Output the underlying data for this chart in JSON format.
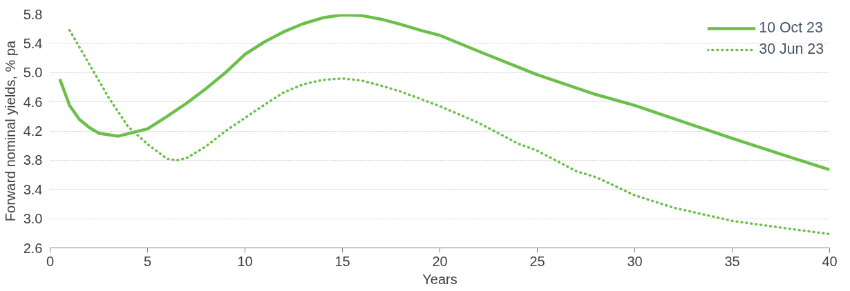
{
  "chart_data": {
    "type": "line",
    "xlabel": "Years",
    "ylabel": "Forward nominal yields, % pa",
    "xlim": [
      0,
      40
    ],
    "xticks": [
      0,
      5,
      10,
      15,
      20,
      25,
      30,
      35,
      40
    ],
    "ylim": [
      2.6,
      5.8
    ],
    "yticks": [
      {
        "value": 2.6,
        "label": "2.6"
      },
      {
        "value": 3.0,
        "label": "3.0"
      },
      {
        "value": 3.4,
        "label": "3.4"
      },
      {
        "value": 3.8,
        "label": "3.8"
      },
      {
        "value": 4.2,
        "label": "4.2"
      },
      {
        "value": 4.6,
        "label": "4.6"
      },
      {
        "value": 5.0,
        "label": "5.0"
      },
      {
        "value": 5.4,
        "label": "5.4"
      },
      {
        "value": 5.8,
        "label": "5.8"
      }
    ],
    "grid": "y",
    "legend": "top right",
    "series": [
      {
        "name": "10 Oct 23",
        "color": "#6cc04a",
        "line_style": "solid",
        "x": [
          0.5,
          1,
          1.5,
          2,
          2.5,
          3.5,
          5,
          6,
          7,
          8,
          9,
          10,
          11,
          12,
          13,
          14,
          15,
          16,
          17,
          18,
          19,
          20,
          22,
          25,
          28,
          30,
          33,
          35,
          38,
          40
        ],
        "values": [
          4.91,
          4.55,
          4.36,
          4.25,
          4.17,
          4.13,
          4.23,
          4.4,
          4.58,
          4.78,
          5.0,
          5.25,
          5.42,
          5.56,
          5.67,
          5.75,
          5.79,
          5.78,
          5.73,
          5.66,
          5.58,
          5.51,
          5.29,
          4.97,
          4.7,
          4.55,
          4.28,
          4.1,
          3.84,
          3.67
        ]
      },
      {
        "name": "30 Jun 23",
        "color": "#6cc04a",
        "line_style": "dotted",
        "x": [
          1,
          2,
          3,
          4,
          5,
          6,
          6.5,
          7,
          8,
          9,
          10,
          11,
          12,
          13,
          14,
          15,
          16,
          17,
          18,
          19,
          20,
          22,
          24,
          25,
          27,
          28,
          30,
          32,
          35,
          38,
          40
        ],
        "values": [
          5.58,
          5.12,
          4.66,
          4.26,
          4.02,
          3.82,
          3.8,
          3.83,
          3.99,
          4.2,
          4.38,
          4.56,
          4.73,
          4.84,
          4.9,
          4.92,
          4.89,
          4.82,
          4.74,
          4.64,
          4.54,
          4.31,
          4.03,
          3.93,
          3.65,
          3.57,
          3.32,
          3.15,
          2.97,
          2.86,
          2.79
        ]
      }
    ]
  }
}
